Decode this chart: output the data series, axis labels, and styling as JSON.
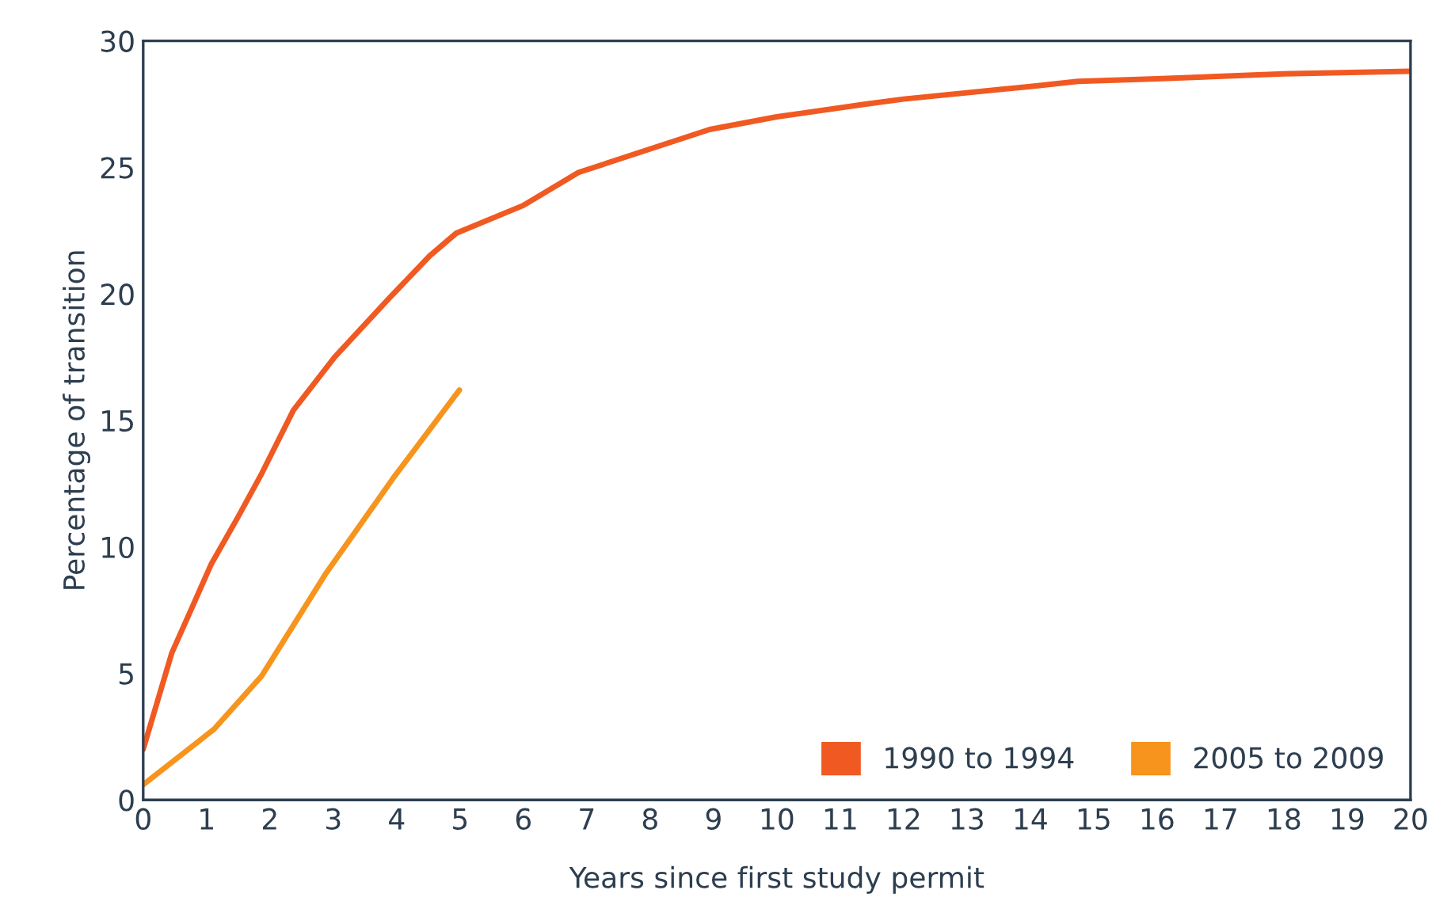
{
  "chart_data": {
    "type": "line",
    "xlabel": "Years since first study permit",
    "ylabel": "Percentage of transition",
    "xlim": [
      0,
      20
    ],
    "xticks": [
      0,
      1,
      2,
      3,
      4,
      5,
      6,
      7,
      8,
      9,
      10,
      11,
      12,
      13,
      14,
      15,
      16,
      17,
      18,
      19,
      20
    ],
    "ylim": [
      0,
      30
    ],
    "yticks": [
      0,
      5,
      10,
      15,
      20,
      25,
      30
    ],
    "grid": false,
    "legend": "bottom right",
    "marker": "none",
    "line_style": "solid",
    "series": [
      {
        "name": "1990 to 1994",
        "color": "#f05a22",
        "x": [
          0,
          0.45,
          0.77,
          1.07,
          1.5,
          1.87,
          2.37,
          3.02,
          3.87,
          4.52,
          4.94,
          6.0,
          6.87,
          8.94,
          10,
          11.4,
          12,
          14,
          14.75,
          16,
          18,
          20
        ],
        "values": [
          2.0,
          5.8,
          7.6,
          9.3,
          11.2,
          12.9,
          15.4,
          17.5,
          19.8,
          21.5,
          22.4,
          23.5,
          24.8,
          26.5,
          27.0,
          27.5,
          27.7,
          28.2,
          28.4,
          28.5,
          28.7,
          28.8
        ]
      },
      {
        "name": "2005 to 2009",
        "color": "#f7941d",
        "x": [
          0,
          1.12,
          1.87,
          2.87,
          3.94,
          4.99
        ],
        "values": [
          0.6,
          2.8,
          4.9,
          8.9,
          12.7,
          16.2
        ]
      }
    ]
  }
}
